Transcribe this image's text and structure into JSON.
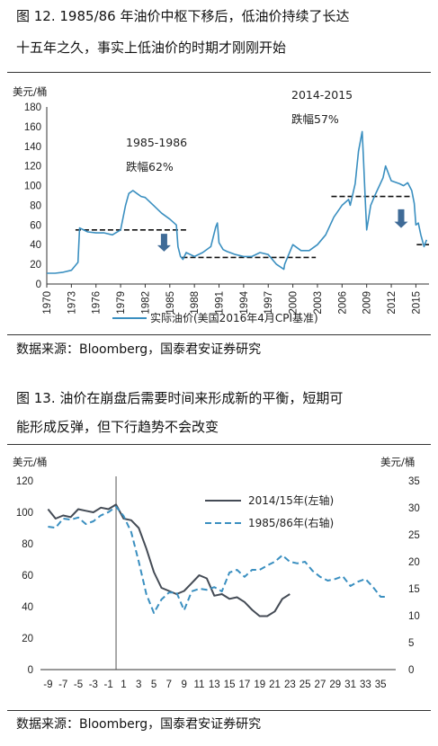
{
  "chart1_title_line1": "图 12. 1985/86 年油价中枢下移后，低油价持续了长达",
  "chart1_title_line2": "十五年之久，事实上低油价的时期才刚刚开始",
  "chart1_source": "数据来源：Bloomberg，国泰君安证券研究",
  "chart2_title_line1": "图 13. 油价在崩盘后需要时间来形成新的平衡，短期可",
  "chart2_title_line2": "能形成反弹，但下行趋势不会改变",
  "chart2_source": "数据来源：Bloomberg，国泰君安证券研究",
  "chart_data": [
    {
      "type": "line",
      "ylabel": "美元/桶",
      "ylim": [
        0,
        180
      ],
      "yticks": [
        0,
        20,
        40,
        60,
        80,
        100,
        120,
        140,
        160,
        180
      ],
      "xlim": [
        1970,
        2016.6
      ],
      "xticks": [
        1970,
        1973,
        1976,
        1979,
        1982,
        1985,
        1988,
        1991,
        1994,
        1997,
        2000,
        2003,
        2006,
        2009,
        2012,
        2015
      ],
      "color": "#3a8fc0",
      "series": [
        {
          "name": "实际油价(美国2016年4月CPI基准)",
          "x": [
            1970,
            1971,
            1972,
            1973,
            1973.8,
            1974,
            1975,
            1976,
            1977,
            1978,
            1979,
            1979.6,
            1980,
            1980.5,
            1981,
            1981.5,
            1982,
            1983,
            1984,
            1985,
            1985.8,
            1986,
            1986.3,
            1986.6,
            1987,
            1988,
            1989,
            1990,
            1990.6,
            1990.8,
            1991,
            1991.5,
            1992,
            1993,
            1994,
            1995,
            1996,
            1997,
            1998,
            1998.9,
            1999,
            1999.5,
            2000,
            2001,
            2002,
            2003,
            2004,
            2005,
            2006,
            2006.8,
            2007,
            2007.6,
            2008,
            2008.45,
            2008.6,
            2008.8,
            2009,
            2009.5,
            2010,
            2011,
            2011.3,
            2012,
            2013,
            2013.5,
            2014,
            2014.5,
            2014.8,
            2015,
            2015.3,
            2015.6,
            2016,
            2016.3
          ],
          "values": [
            11,
            11,
            12,
            14,
            22,
            57,
            53,
            52,
            52,
            50,
            55,
            80,
            92,
            95,
            92,
            89,
            88,
            80,
            72,
            66,
            60,
            38,
            28,
            25,
            32,
            28,
            32,
            38,
            58,
            62,
            42,
            35,
            33,
            30,
            28,
            28,
            32,
            30,
            20,
            15,
            20,
            30,
            40,
            34,
            34,
            40,
            50,
            68,
            80,
            86,
            80,
            102,
            135,
            155,
            130,
            90,
            55,
            80,
            90,
            108,
            120,
            105,
            102,
            100,
            103,
            95,
            82,
            60,
            62,
            50,
            38,
            45
          ]
        }
      ],
      "annotations": [
        {
          "line1": "1985-1986",
          "line2": "跌幅62%"
        },
        {
          "line1": "2014-2015",
          "line2": "跌幅57%"
        }
      ],
      "reference_lines": [
        {
          "x0": 1973.5,
          "x1": 1987.2,
          "y": 55
        },
        {
          "x0": 1986.5,
          "x1": 2002.8,
          "y": 27
        },
        {
          "x0": 2004.7,
          "x1": 2014.6,
          "y": 89
        },
        {
          "x0": 2015.1,
          "x1": 2016.6,
          "y": 40
        }
      ],
      "arrows": [
        {
          "x": 1984.3,
          "y_from": 51,
          "y_to": 33
        },
        {
          "x": 2013.2,
          "y_from": 76,
          "y_to": 57
        }
      ]
    },
    {
      "type": "line",
      "ylabel": "美元/桶",
      "y2label": "美元/桶",
      "ylim": [
        0,
        120
      ],
      "yticks": [
        0,
        20,
        40,
        60,
        80,
        100,
        120
      ],
      "y2lim": [
        0,
        35
      ],
      "y2ticks": [
        0,
        5,
        10,
        15,
        20,
        25,
        30,
        35
      ],
      "xlim": [
        -10,
        37
      ],
      "xticks": [
        -9,
        -7,
        -5,
        -3,
        -1,
        1,
        3,
        5,
        7,
        9,
        11,
        13,
        15,
        17,
        19,
        21,
        23,
        25,
        27,
        29,
        31,
        33,
        35
      ],
      "vline_x": 0,
      "series": [
        {
          "name": "2014/15年(左轴)",
          "axis": "left",
          "color": "#444b55",
          "dash": "",
          "x": [
            -9,
            -8,
            -7,
            -6,
            -5,
            -4,
            -3,
            -2,
            -1,
            0,
            1,
            2,
            3,
            4,
            5,
            6,
            7,
            8,
            9,
            10,
            11,
            12,
            13,
            14,
            15,
            16,
            17,
            18,
            19,
            20,
            21,
            22,
            23
          ],
          "values": [
            102,
            96,
            98,
            97,
            102,
            101,
            100,
            103,
            102,
            105,
            96,
            95,
            90,
            77,
            62,
            52,
            50,
            48,
            50,
            55,
            60,
            58,
            47,
            48,
            45,
            46,
            43,
            38,
            34,
            34,
            37,
            45,
            48
          ]
        },
        {
          "name": "1985/86年(右轴)",
          "axis": "right",
          "color": "#3a8fc0",
          "dash": "7,4",
          "x": [
            -9,
            -8,
            -7,
            -6,
            -5,
            -4,
            -3,
            -2,
            -1,
            0,
            1,
            2,
            3,
            4,
            5,
            6,
            7,
            8,
            9,
            10,
            11,
            12,
            13,
            14,
            15,
            16,
            17,
            18,
            19,
            20,
            21,
            22,
            23,
            24,
            25,
            26,
            27,
            28,
            29,
            30,
            31,
            32,
            33,
            34,
            35,
            36
          ],
          "values": [
            26.5,
            26.3,
            28,
            27.8,
            28.2,
            27,
            27.5,
            28.6,
            29.2,
            30.2,
            28.5,
            25.5,
            20,
            14,
            10.5,
            13,
            14.3,
            14.3,
            11,
            14.5,
            15,
            14.8,
            15.3,
            14.5,
            18,
            18.5,
            17.2,
            18.5,
            18.5,
            19.3,
            20,
            21.2,
            20,
            19.7,
            20,
            18.3,
            17.2,
            16.5,
            16.8,
            17.3,
            15.5,
            16.3,
            16.8,
            15.3,
            13.5,
            13.5
          ]
        }
      ]
    }
  ]
}
